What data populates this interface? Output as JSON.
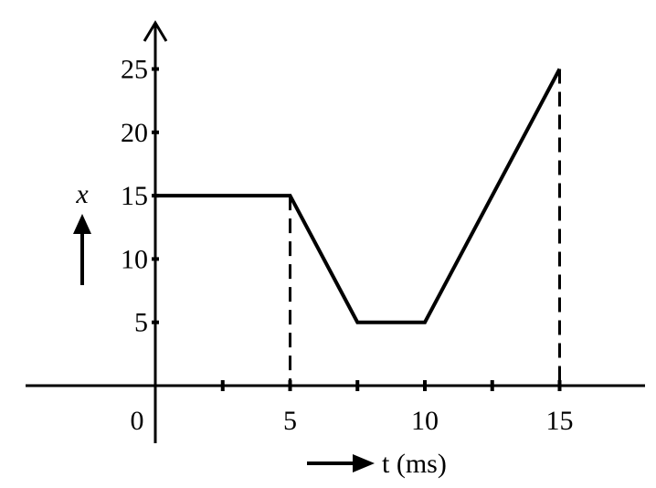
{
  "chart_data": {
    "type": "line",
    "title": "",
    "xlabel": "t (ms)",
    "ylabel": "x",
    "x_ticks": [
      0,
      5,
      10,
      15
    ],
    "x_tick_labels": [
      "0",
      "5",
      "10",
      "15"
    ],
    "x_minor_ticks": [
      2.5,
      7.5,
      12.5
    ],
    "y_ticks": [
      5,
      10,
      15,
      20,
      25
    ],
    "y_tick_labels": [
      "5",
      "10",
      "15",
      "20",
      "25"
    ],
    "xlim": [
      -5,
      18
    ],
    "ylim": [
      -5,
      28
    ],
    "grid": false,
    "series": [
      {
        "x": [
          0,
          5,
          7.5,
          10,
          15
        ],
        "y": [
          15,
          15,
          5,
          5,
          25
        ],
        "color": "#000000"
      }
    ],
    "dashed_verticals": [
      {
        "x": 5,
        "y": 15
      },
      {
        "x": 15,
        "y": 25
      }
    ]
  }
}
